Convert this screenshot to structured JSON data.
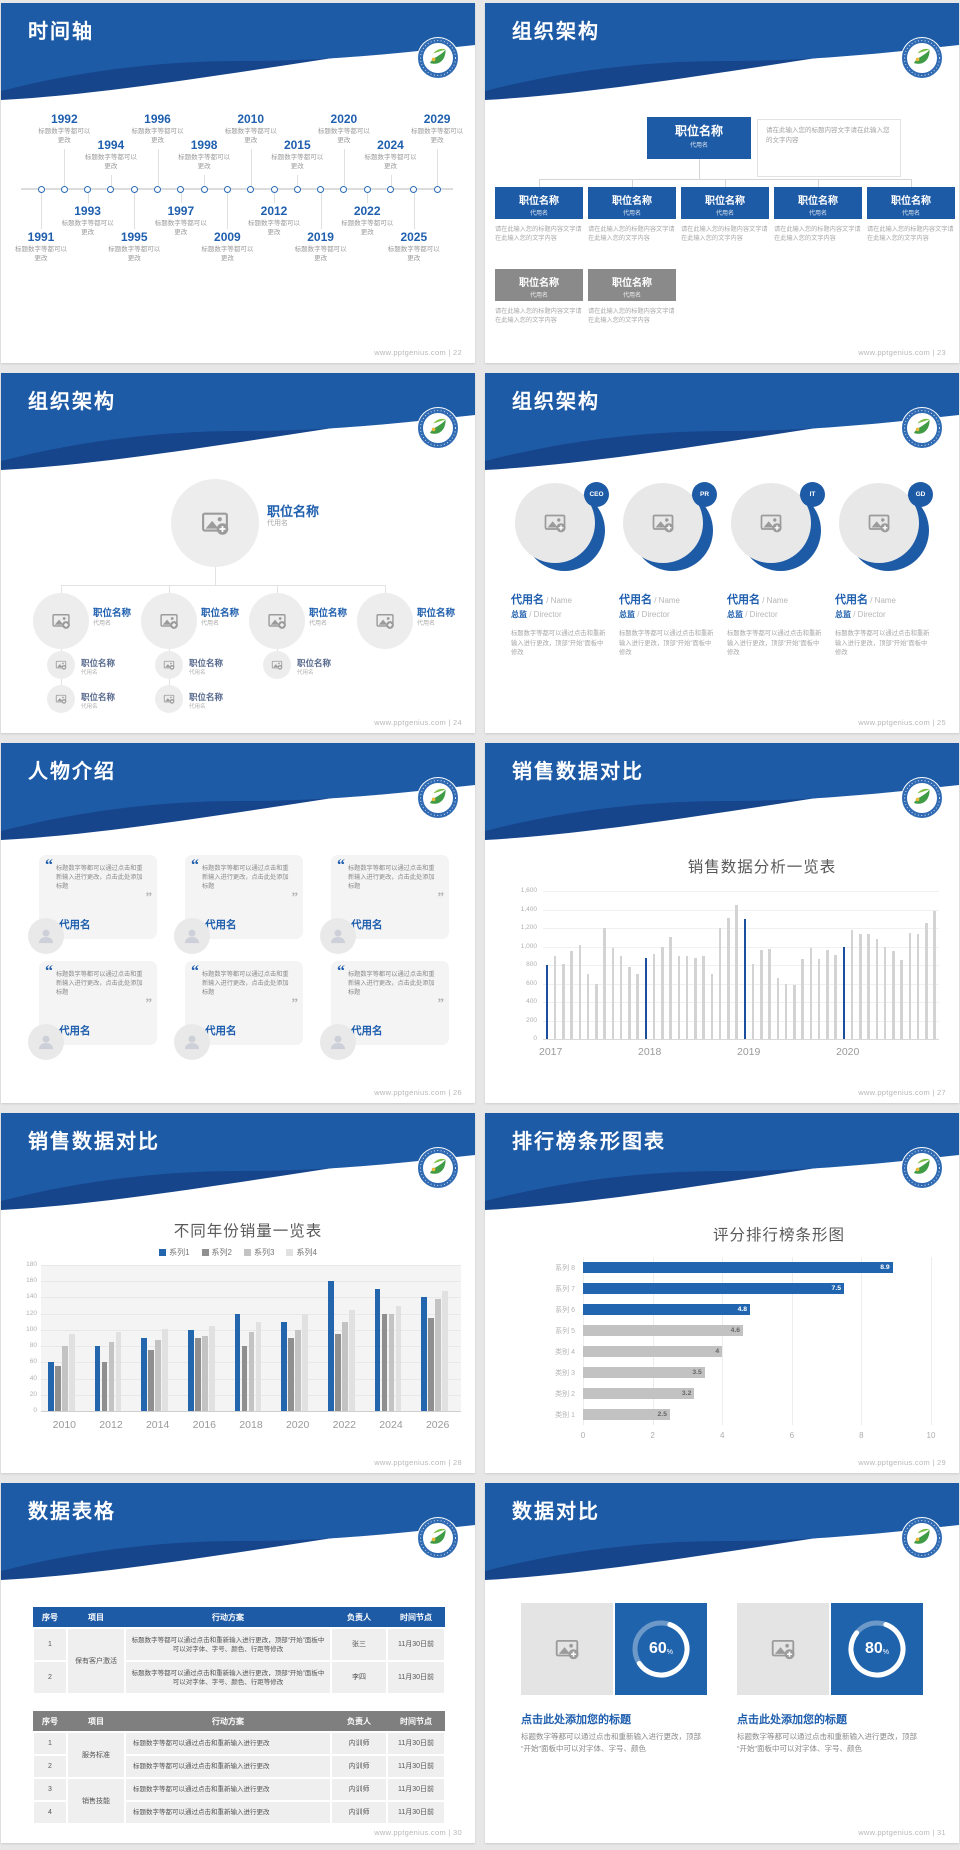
{
  "site": {
    "footer": "www.pptgenius.com",
    "sep": " | "
  },
  "colors": {
    "header_blue": "#1E5BA6",
    "header_dark": "#16458C",
    "accent": "#1F5FAE",
    "gray_text": "#999999",
    "bar_blue": "#1B4F9E",
    "bar_gray": "#D3D3D3",
    "rank_blue": "#2165B0",
    "rank_gray": "#C2C2C2",
    "box_gray": "#8A8A8A",
    "table_blue": "#1E5BA6",
    "table_gray": "#7F7F7F",
    "s31_blue": "#1F63AD"
  },
  "common": {
    "position_title": "职位名称",
    "alias": "代用名"
  },
  "slides": {
    "s22": {
      "title": "时间轴",
      "page": "22",
      "caption": "标题数字等都可以更改",
      "events": [
        {
          "y": "1991",
          "s": "b",
          "l": 1
        },
        {
          "y": "1992",
          "s": "t",
          "l": 1
        },
        {
          "y": "1993",
          "s": "b",
          "l": 2
        },
        {
          "y": "1994",
          "s": "t",
          "l": 2
        },
        {
          "y": "1995",
          "s": "b",
          "l": 1
        },
        {
          "y": "1996",
          "s": "t",
          "l": 1
        },
        {
          "y": "1997",
          "s": "b",
          "l": 2
        },
        {
          "y": "1998",
          "s": "t",
          "l": 2
        },
        {
          "y": "2009",
          "s": "b",
          "l": 1
        },
        {
          "y": "2010",
          "s": "t",
          "l": 1
        },
        {
          "y": "2012",
          "s": "b",
          "l": 2
        },
        {
          "y": "2015",
          "s": "t",
          "l": 2
        },
        {
          "y": "2019",
          "s": "b",
          "l": 1
        },
        {
          "y": "2020",
          "s": "t",
          "l": 1
        },
        {
          "y": "2022",
          "s": "b",
          "l": 2
        },
        {
          "y": "2024",
          "s": "t",
          "l": 2
        },
        {
          "y": "2025",
          "s": "b",
          "l": 1
        },
        {
          "y": "2029",
          "s": "t",
          "l": 1
        }
      ]
    },
    "s23": {
      "title": "组织架构",
      "page": "23",
      "root_note": "请在此输入您的标题内容文字请在此输入您的文字内容",
      "child_note": "请在此输入您的标题内容文字请在此输入您的文字内容",
      "blue_children": 5,
      "gray_children": 2
    },
    "s24": {
      "title": "组织架构",
      "page": "24",
      "level2": 4,
      "level3": 3,
      "level4": 2
    },
    "s25": {
      "title": "组织架构",
      "page": "25",
      "badges": [
        "CEO",
        "PR",
        "IT",
        "GD"
      ],
      "name": "代用名",
      "name_en": "Name",
      "role": "总监",
      "role_en": "Director",
      "note": "标题数字等都可以通过点击和重新输入进行更改，顶部“开始”面板中修改"
    },
    "s26": {
      "title": "人物介绍",
      "page": "26",
      "cards": 6,
      "quote": "标题数字等都可以通过点击和重新输入进行更改，点击此处添加标题",
      "name": "代用名"
    },
    "s27": {
      "title": "销售数据对比",
      "page": "27"
    },
    "s28": {
      "title": "销售数据对比",
      "page": "28"
    },
    "s29": {
      "title": "排行榜条形图表",
      "page": "29"
    },
    "s30": {
      "title": "数据表格",
      "page": "30",
      "tables": [
        {
          "theme": "blue",
          "columns": [
            "序号",
            "项目",
            "行动方案",
            "负责人",
            "时间节点"
          ],
          "rows": [
            {
              "no": "1",
              "project": "保有客户激活",
              "span": 2,
              "action": "标题数字等都可以通过点击和重新输入进行更改，顶部“开始”面板中可以对字体、字号、颜色、行距等修改",
              "owner": "张三",
              "due": "11月30日前"
            },
            {
              "no": "2",
              "action": "标题数字等都可以通过点击和重新输入进行更改，顶部“开始”面板中可以对字体、字号、颜色、行距等修改",
              "owner": "李四",
              "due": "11月30日前"
            }
          ]
        },
        {
          "theme": "gray",
          "columns": [
            "序号",
            "项目",
            "行动方案",
            "负责人",
            "时间节点"
          ],
          "rows": [
            {
              "no": "1",
              "project": "服务标准",
              "span": 2,
              "action": "标题数字等都可以通过点击和重新输入进行更改",
              "owner": "内训师",
              "due": "11月30日前"
            },
            {
              "no": "2",
              "action": "标题数字等都可以通过点击和重新输入进行更改",
              "owner": "内训师",
              "due": "11月30日前"
            },
            {
              "no": "3",
              "project": "销售技能",
              "span": 2,
              "action": "标题数字等都可以通过点击和重新输入进行更改",
              "owner": "内训师",
              "due": "11月30日前"
            },
            {
              "no": "4",
              "action": "标题数字等都可以通过点击和重新输入进行更改",
              "owner": "内训师",
              "due": "11月30日前"
            }
          ]
        }
      ]
    },
    "s31": {
      "title": "数据对比",
      "page": "31",
      "item_title": "点击此处添加您的标题",
      "note": "标题数字等都可以通过点击和重新输入进行更改，顶部“开始”面板中可以对字体、字号、颜色",
      "percents": [
        60,
        80
      ]
    }
  },
  "chart_data": [
    {
      "slide": 27,
      "type": "bar",
      "title": "销售数据分析一览表",
      "ylim": [
        0,
        1600
      ],
      "ylabel_ticks": [
        "0",
        "200",
        "400",
        "600",
        "800",
        "1,000",
        "1,200",
        "1,400",
        "1,600"
      ],
      "categories": [
        "2017",
        "2018",
        "2019",
        "2020"
      ],
      "groups": [
        [
          800,
          900,
          810,
          950,
          1020,
          700,
          600,
          1200,
          980,
          900,
          780,
          700
        ],
        [
          880,
          920,
          1000,
          1100,
          900,
          900,
          880,
          900,
          700,
          1200,
          1310,
          1450
        ],
        [
          1300,
          810,
          960,
          970,
          660,
          590,
          580,
          870,
          980,
          870,
          960,
          910
        ],
        [
          1000,
          1180,
          1130,
          1130,
          1080,
          1000,
          950,
          850,
          1150,
          1130,
          1250,
          1380
        ]
      ],
      "highlight_first": true,
      "legend_position": "none",
      "grid": true
    },
    {
      "slide": 28,
      "type": "bar",
      "title": "不同年份销量一览表",
      "ylim": [
        0,
        180
      ],
      "ytick": 20,
      "categories": [
        "2010",
        "2012",
        "2014",
        "2016",
        "2018",
        "2020",
        "2022",
        "2024",
        "2026"
      ],
      "series": [
        {
          "name": "系列1",
          "color": "#2466AD",
          "values": [
            60,
            80,
            90,
            100,
            120,
            110,
            160,
            150,
            140
          ]
        },
        {
          "name": "系列2",
          "color": "#8F8F8F",
          "values": [
            55,
            60,
            75,
            90,
            80,
            90,
            95,
            120,
            115
          ]
        },
        {
          "name": "系列3",
          "color": "#C3C3C3",
          "values": [
            80,
            85,
            88,
            92,
            98,
            100,
            110,
            119,
            138
          ]
        },
        {
          "name": "系列4",
          "color": "#E1E1E1",
          "values": [
            95,
            98,
            101,
            105,
            110,
            119,
            125,
            129,
            148
          ]
        }
      ],
      "legend_position": "top",
      "grid": true
    },
    {
      "slide": 29,
      "type": "bar-horizontal",
      "title": "评分排行榜条形图",
      "xlim": [
        0,
        10
      ],
      "xticks": [
        "0",
        "2",
        "4",
        "6",
        "8",
        "10"
      ],
      "bars": [
        {
          "label": "系列 8",
          "value": 8.9,
          "display": "8.9",
          "blue": true
        },
        {
          "label": "系列 7",
          "value": 7.5,
          "display": "7.5",
          "blue": true
        },
        {
          "label": "系列 6",
          "value": 4.8,
          "display": "4.8",
          "blue": true
        },
        {
          "label": "系列 5",
          "value": 4.6,
          "display": "4.6",
          "blue": false
        },
        {
          "label": "类别 4",
          "value": 4,
          "display": "4",
          "blue": false
        },
        {
          "label": "类别 3",
          "value": 3.5,
          "display": "3.5",
          "blue": false
        },
        {
          "label": "类别 2",
          "value": 3.2,
          "display": "3.2",
          "blue": false
        },
        {
          "label": "类别 1",
          "value": 2.5,
          "display": "2.5",
          "blue": false
        }
      ],
      "grid": true
    },
    {
      "slide": 31,
      "type": "donut",
      "values": [
        60,
        80
      ],
      "unit": "%"
    }
  ]
}
